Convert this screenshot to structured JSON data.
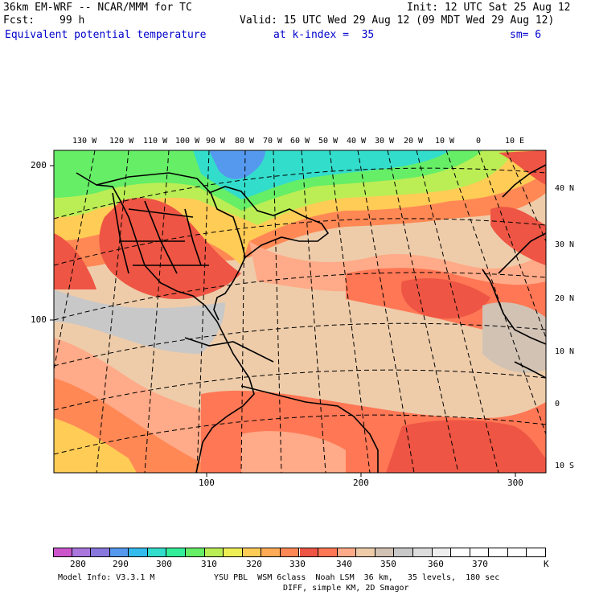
{
  "header": {
    "model": "36km EM-WRF -- NCAR/MMM for TC",
    "init": "Init: 12 UTC Sat 25 Aug 12",
    "fcst_label": "Fcst:",
    "fcst_value": "99 h",
    "valid": "Valid: 15 UTC Wed 29 Aug 12 (09 MDT Wed 29 Aug 12)",
    "field": "Equivalent potential temperature",
    "level": "at k-index =  35",
    "smoothing": "sm= 6"
  },
  "map": {
    "lon_labels": [
      "130 W",
      "120 W",
      "110 W",
      "100 W",
      "90 W",
      "80 W",
      "70 W",
      "60 W",
      "50 W",
      "40 W",
      "30 W",
      "20 W",
      "10 W",
      "0",
      "10 E"
    ],
    "lat_labels": [
      "40 N",
      "30 N",
      "20 N",
      "10 N",
      "0",
      "10 S"
    ],
    "x_ticks": [
      "100",
      "200",
      "300"
    ],
    "y_ticks": [
      "200",
      "100"
    ]
  },
  "colorbar": {
    "colors": [
      "#cc55cc",
      "#aa77dd",
      "#8877dd",
      "#5599ee",
      "#33bbee",
      "#33ddcc",
      "#33ee99",
      "#66ee66",
      "#bbee55",
      "#eeee55",
      "#ffcc55",
      "#ffaa55",
      "#ff8855",
      "#ee5544",
      "#ff7755",
      "#ffaa88",
      "#eeccaa",
      "#d2c2b4",
      "#c8c8c8",
      "#dddddd",
      "#eeeeee",
      "#ffffff",
      "#ffffff",
      "#ffffff",
      "#ffffff",
      "#ffffff"
    ],
    "labels": [
      "280",
      "290",
      "300",
      "310",
      "320",
      "330",
      "340",
      "350",
      "360",
      "370"
    ],
    "unit": "K"
  },
  "footer": {
    "line1_left": "Model Info: V3.3.1 M",
    "line1_right": "YSU PBL  WSM 6class  Noah LSM  36 km,   35 levels,  180 sec",
    "line2": "DIFF, simple KM, 2D Smagor"
  }
}
